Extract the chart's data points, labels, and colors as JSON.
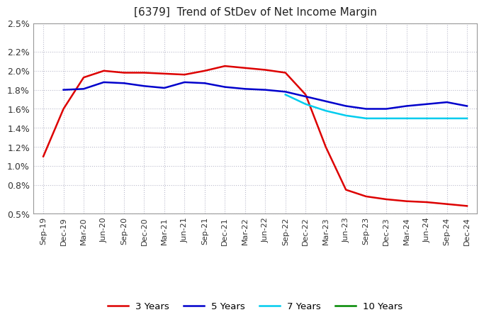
{
  "title": "[6379]  Trend of StDev of Net Income Margin",
  "background_color": "#ffffff",
  "plot_bg_color": "#e8e8f0",
  "grid_color": "#bbbbcc",
  "legend": [
    "3 Years",
    "5 Years",
    "7 Years",
    "10 Years"
  ],
  "line_colors": [
    "#dd0000",
    "#0000cc",
    "#00ccee",
    "#008800"
  ],
  "x_labels": [
    "Sep-19",
    "Dec-19",
    "Mar-20",
    "Jun-20",
    "Sep-20",
    "Dec-20",
    "Mar-21",
    "Jun-21",
    "Sep-21",
    "Dec-21",
    "Mar-22",
    "Jun-22",
    "Sep-22",
    "Dec-22",
    "Mar-23",
    "Jun-23",
    "Sep-23",
    "Dec-23",
    "Mar-24",
    "Jun-24",
    "Sep-24",
    "Dec-24"
  ],
  "ytick_vals": [
    0.005,
    0.008,
    0.01,
    0.012,
    0.014,
    0.016,
    0.018,
    0.02,
    0.022,
    0.025
  ],
  "ytick_labels": [
    "0.5%",
    "0.8%",
    "1.0%",
    "1.2%",
    "1.4%",
    "1.6%",
    "1.8%",
    "2.0%",
    "2.2%",
    "2.5%"
  ],
  "ylim": [
    0.005,
    0.025
  ],
  "series_3y": [
    0.011,
    0.016,
    0.0193,
    0.02,
    0.0198,
    0.0198,
    0.0197,
    0.0196,
    0.02,
    0.0205,
    0.0203,
    0.0201,
    0.0198,
    0.0175,
    0.012,
    0.0075,
    0.0068,
    0.0065,
    0.0063,
    0.0062,
    0.006,
    0.0058
  ],
  "series_5y": [
    null,
    0.018,
    0.0181,
    0.0188,
    0.0187,
    0.0184,
    0.0182,
    0.0188,
    0.0187,
    0.0183,
    0.0181,
    0.018,
    0.0178,
    0.0173,
    0.0168,
    0.0163,
    0.016,
    0.016,
    0.0163,
    0.0165,
    0.0167,
    0.0163
  ],
  "series_7y": [
    null,
    null,
    null,
    null,
    null,
    null,
    null,
    null,
    null,
    null,
    null,
    null,
    0.0175,
    0.0165,
    0.0158,
    0.0153,
    0.015,
    0.015,
    0.015,
    0.015,
    0.015,
    0.015
  ],
  "series_10y": [
    null,
    null,
    null,
    null,
    null,
    null,
    null,
    null,
    null,
    null,
    null,
    null,
    null,
    null,
    null,
    null,
    null,
    null,
    null,
    null,
    null,
    null
  ]
}
